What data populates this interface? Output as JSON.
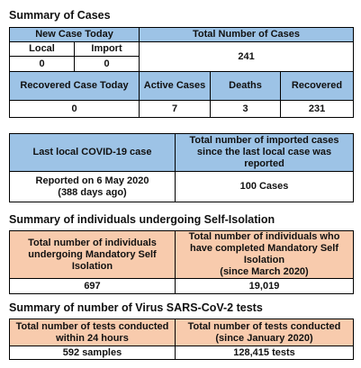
{
  "sections": {
    "cases": {
      "heading": "Summary of Cases",
      "new_case_today": "New Case Today",
      "total_number_of_cases": "Total Number of Cases",
      "local_label": "Local",
      "import_label": "Import",
      "local_value": "0",
      "import_value": "0",
      "total_value": "241",
      "recovered_case_today": "Recovered Case Today",
      "active_cases": "Active Cases",
      "deaths": "Deaths",
      "recovered": "Recovered",
      "recovered_today_value": "0",
      "active_value": "7",
      "deaths_value": "3",
      "recovered_value": "231"
    },
    "local_case": {
      "last_local_label": "Last local COVID-19 case",
      "imported_since_label": "Total number of imported cases since the last local case was reported",
      "reported_on": "Reported on 6 May 2020",
      "days_ago": "(388 days ago)",
      "imported_value": "100 Cases"
    },
    "isolation": {
      "heading": "Summary of individuals undergoing Self-Isolation",
      "undergoing_label": "Total number of individuals undergoing Mandatory Self Isolation",
      "completed_label": "Total number of individuals who have completed Mandatory Self Isolation",
      "completed_since": "(since March 2020)",
      "undergoing_value": "697",
      "completed_value": "19,019"
    },
    "tests": {
      "heading": "Summary of number of Virus SARS-CoV-2 tests",
      "within_24h_label": "Total number of tests conducted within 24 hours",
      "since_jan_label": "Total number of tests conducted (since January 2020)",
      "within_24h_value": "592 samples",
      "since_jan_value": "128,415 tests"
    }
  }
}
